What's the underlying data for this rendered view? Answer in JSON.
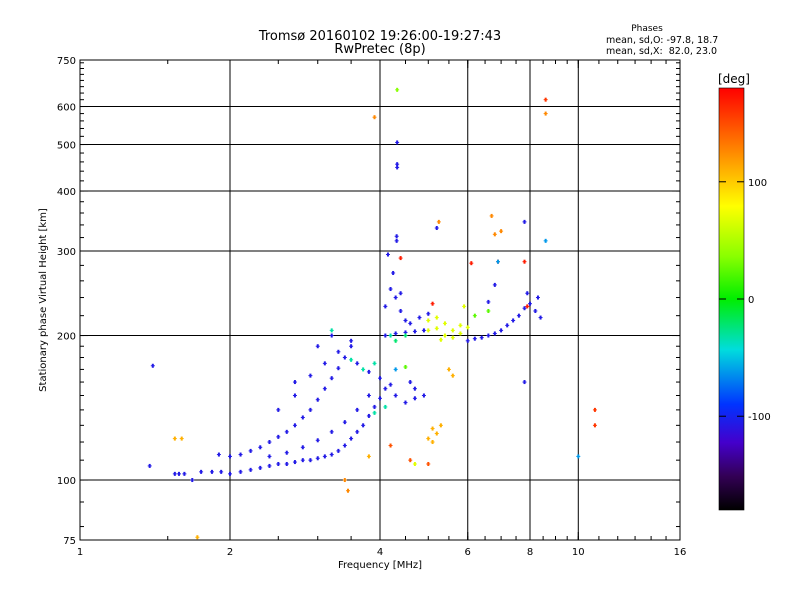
{
  "chart_data": {
    "type": "scatter",
    "title": "Tromsø 20160102 19:26:00-19:27:43",
    "subtitle": "RwPretec (8p)",
    "stats_heading": "Phases",
    "stats_line1": "mean, sd,O: -97.8, 18.7",
    "stats_line2": "mean, sd,X:  82.0, 23.0",
    "xlabel": "Frequency [MHz]",
    "ylabel": "Stationary phase Virtual Height [km]",
    "xscale": "log2",
    "yscale": "log",
    "xlim": [
      1,
      16
    ],
    "ylim": [
      75,
      750
    ],
    "x_ticks": [
      1,
      2,
      4,
      6,
      8,
      10,
      16
    ],
    "x_tick_labels": [
      "1",
      "2",
      "4",
      "6",
      "8",
      "10",
      "16"
    ],
    "y_ticks": [
      75,
      100,
      200,
      300,
      400,
      500,
      600,
      750
    ],
    "y_tick_labels": [
      "75",
      "100",
      "200",
      "300",
      "400",
      "500",
      "600",
      "750"
    ],
    "x_gridlines": [
      2,
      4,
      6,
      8,
      10
    ],
    "y_gridlines": [
      100,
      200,
      300,
      400,
      500,
      600
    ],
    "grid": true,
    "colorbar": {
      "label": "[deg]",
      "range": [
        -180,
        180
      ],
      "ticks": [
        100,
        0,
        -100
      ],
      "tick_labels": [
        "100",
        "0",
        "-100"
      ]
    },
    "series": [
      {
        "points": [
          [
            1.84,
            104,
            -100
          ],
          [
            1.92,
            104,
            -100
          ],
          [
            2.0,
            103,
            -100
          ],
          [
            2.1,
            104,
            -100
          ],
          [
            2.2,
            105,
            -100
          ],
          [
            2.3,
            106,
            -100
          ],
          [
            2.4,
            107,
            -100
          ],
          [
            2.5,
            108,
            -100
          ],
          [
            2.6,
            108,
            -100
          ],
          [
            2.7,
            109,
            -100
          ],
          [
            2.8,
            110,
            -100
          ],
          [
            2.9,
            110,
            -100
          ],
          [
            3.0,
            111,
            -100
          ],
          [
            3.1,
            112,
            -100
          ],
          [
            3.2,
            113,
            -100
          ],
          [
            3.3,
            115,
            -100
          ],
          [
            3.4,
            118,
            -100
          ],
          [
            3.5,
            122,
            -100
          ],
          [
            3.6,
            126,
            -100
          ],
          [
            3.7,
            130,
            -100
          ],
          [
            3.8,
            136,
            -100
          ],
          [
            3.9,
            142,
            -100
          ],
          [
            4.0,
            148,
            -100
          ],
          [
            4.2,
            158,
            -100
          ],
          [
            1.9,
            113,
            -100
          ],
          [
            2.0,
            112,
            -100
          ],
          [
            2.1,
            113,
            -100
          ],
          [
            2.2,
            115,
            -100
          ],
          [
            2.3,
            117,
            -100
          ],
          [
            2.4,
            120,
            -100
          ],
          [
            2.5,
            123,
            -100
          ],
          [
            2.6,
            126,
            -100
          ],
          [
            2.7,
            130,
            -100
          ],
          [
            2.8,
            135,
            -100
          ],
          [
            2.9,
            140,
            -100
          ],
          [
            3.0,
            147,
            -100
          ],
          [
            3.1,
            155,
            -100
          ],
          [
            3.2,
            163,
            -100
          ],
          [
            3.3,
            171,
            -100
          ],
          [
            3.4,
            180,
            -100
          ],
          [
            3.5,
            190,
            -100
          ],
          [
            2.4,
            112,
            -100
          ],
          [
            2.6,
            114,
            -100
          ],
          [
            2.8,
            117,
            -100
          ],
          [
            3.0,
            121,
            -100
          ],
          [
            3.2,
            126,
            -100
          ],
          [
            3.4,
            132,
            -100
          ],
          [
            3.6,
            140,
            -100
          ],
          [
            3.8,
            150,
            -100
          ],
          [
            4.0,
            163,
            -100
          ],
          [
            2.7,
            150,
            -100
          ],
          [
            2.9,
            165,
            -100
          ],
          [
            3.1,
            175,
            -100
          ],
          [
            3.3,
            185,
            -100
          ],
          [
            3.5,
            195,
            -100
          ],
          [
            2.5,
            140,
            -100
          ],
          [
            2.7,
            160,
            -100
          ],
          [
            3.0,
            190,
            -100
          ],
          [
            3.2,
            200,
            -100
          ],
          [
            3.6,
            175,
            -100
          ],
          [
            3.8,
            168,
            -100
          ],
          [
            4.1,
            155,
            -100
          ],
          [
            4.3,
            150,
            -100
          ],
          [
            4.5,
            145,
            -100
          ],
          [
            4.7,
            148,
            -100
          ],
          [
            4.1,
            200,
            -100
          ],
          [
            4.3,
            202,
            -100
          ],
          [
            4.5,
            203,
            -100
          ],
          [
            4.7,
            204,
            -100
          ],
          [
            4.9,
            205,
            -100
          ],
          [
            4.1,
            230,
            -100
          ],
          [
            4.2,
            250,
            -100
          ],
          [
            4.25,
            270,
            -100
          ],
          [
            4.3,
            240,
            -100
          ],
          [
            4.4,
            225,
            -100
          ],
          [
            4.5,
            215,
            -100
          ],
          [
            4.6,
            212,
            -100
          ],
          [
            4.8,
            218,
            -100
          ],
          [
            5.0,
            222,
            -100
          ],
          [
            1.62,
            103,
            -100
          ],
          [
            1.68,
            100,
            -100
          ],
          [
            1.58,
            103,
            -100
          ],
          [
            1.55,
            103,
            -100
          ],
          [
            1.75,
            104,
            -100
          ],
          [
            1.4,
            173,
            -100
          ],
          [
            1.38,
            107,
            -100
          ],
          [
            6.0,
            195,
            -100
          ],
          [
            6.2,
            197,
            -100
          ],
          [
            6.4,
            198,
            -100
          ],
          [
            6.6,
            200,
            -100
          ],
          [
            6.8,
            202,
            -100
          ],
          [
            7.0,
            205,
            -100
          ],
          [
            7.2,
            210,
            -100
          ],
          [
            7.4,
            215,
            -100
          ],
          [
            7.6,
            220,
            -100
          ],
          [
            7.8,
            228,
            -100
          ],
          [
            8.0,
            233,
            -100
          ],
          [
            8.2,
            225,
            -100
          ],
          [
            8.4,
            218,
            -100
          ],
          [
            7.9,
            245,
            -100
          ],
          [
            8.3,
            240,
            -100
          ],
          [
            6.6,
            235,
            -100
          ],
          [
            6.8,
            255,
            -100
          ],
          [
            4.32,
            322,
            -100
          ],
          [
            4.32,
            315,
            -100
          ],
          [
            4.33,
            455,
            -100
          ],
          [
            4.33,
            448,
            -100
          ],
          [
            4.33,
            505,
            -100
          ],
          [
            7.8,
            345,
            -100
          ],
          [
            7.8,
            160,
            -100
          ],
          [
            5.2,
            335,
            -100
          ],
          [
            4.15,
            295,
            -100
          ],
          [
            4.4,
            245,
            -100
          ],
          [
            4.6,
            160,
            -100
          ],
          [
            4.7,
            155,
            -100
          ],
          [
            4.9,
            150,
            -100
          ]
        ]
      },
      {
        "points": [
          [
            4.3,
            195,
            -20
          ],
          [
            4.5,
            200,
            -20
          ],
          [
            5.0,
            205,
            90
          ],
          [
            5.2,
            207,
            90
          ],
          [
            5.4,
            200,
            90
          ],
          [
            5.6,
            205,
            90
          ],
          [
            5.8,
            210,
            90
          ],
          [
            5.0,
            215,
            90
          ],
          [
            5.2,
            218,
            90
          ],
          [
            5.4,
            212,
            90
          ],
          [
            5.6,
            198,
            90
          ],
          [
            5.8,
            202,
            90
          ],
          [
            6.0,
            208,
            90
          ],
          [
            5.3,
            196,
            90
          ],
          [
            3.9,
            138,
            -30
          ],
          [
            4.1,
            142,
            -30
          ],
          [
            3.7,
            170,
            -30
          ],
          [
            3.5,
            178,
            -30
          ],
          [
            3.9,
            175,
            -30
          ],
          [
            4.2,
            200,
            -30
          ],
          [
            3.2,
            205,
            -30
          ],
          [
            6.2,
            220,
            40
          ],
          [
            6.6,
            225,
            40
          ],
          [
            4.5,
            172,
            40
          ],
          [
            5.9,
            230,
            90
          ]
        ]
      },
      {
        "points": [
          [
            4.33,
            650,
            60
          ],
          [
            3.9,
            570,
            130
          ],
          [
            8.6,
            620,
            160
          ],
          [
            8.6,
            580,
            130
          ],
          [
            5.25,
            345,
            130
          ],
          [
            6.7,
            355,
            130
          ],
          [
            6.8,
            325,
            130
          ],
          [
            7.0,
            330,
            130
          ],
          [
            5.1,
            128,
            120
          ],
          [
            5.2,
            125,
            120
          ],
          [
            5.3,
            130,
            120
          ],
          [
            5.0,
            122,
            120
          ],
          [
            5.1,
            120,
            120
          ],
          [
            4.2,
            118,
            150
          ],
          [
            3.8,
            112,
            120
          ],
          [
            3.4,
            100,
            130
          ],
          [
            3.45,
            95,
            130
          ],
          [
            1.55,
            122,
            120
          ],
          [
            1.6,
            122,
            120
          ],
          [
            1.72,
            76,
            120
          ],
          [
            4.7,
            108,
            90
          ],
          [
            5.0,
            108,
            150
          ],
          [
            5.5,
            170,
            120
          ],
          [
            5.6,
            165,
            120
          ],
          [
            10.8,
            140,
            160
          ],
          [
            10.8,
            130,
            160
          ],
          [
            6.9,
            285,
            170
          ],
          [
            7.8,
            285,
            170
          ],
          [
            6.1,
            283,
            170
          ],
          [
            5.1,
            233,
            170
          ],
          [
            4.4,
            290,
            170
          ],
          [
            7.9,
            230,
            170
          ],
          [
            4.6,
            110,
            150
          ]
        ]
      },
      {
        "points": [
          [
            8.6,
            315,
            -60
          ],
          [
            10.0,
            112,
            -60
          ],
          [
            4.3,
            170,
            -60
          ],
          [
            6.9,
            285,
            -60
          ]
        ]
      }
    ]
  }
}
